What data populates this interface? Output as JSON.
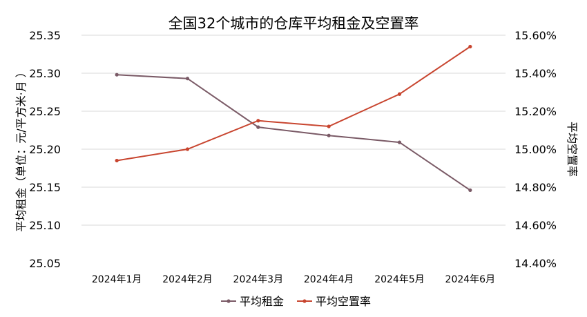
{
  "chart_data": {
    "type": "line",
    "title": "全国32个城市的仓库平均租金及空置率",
    "categories": [
      "2024年1月",
      "2024年2月",
      "2024年3月",
      "2024年4月",
      "2024年5月",
      "2024年6月"
    ],
    "ylabel_left": "平均租金（单位：元/平方米·月 ）",
    "ylabel_right": "平均空置率",
    "ylim_left": [
      25.05,
      25.35
    ],
    "ylim_right": [
      14.4,
      15.6
    ],
    "yticks_left": [
      "25.35",
      "25.30",
      "25.25",
      "25.20",
      "25.15",
      "25.10",
      "25.05"
    ],
    "yticks_right": [
      "15.60%",
      "15.40%",
      "15.20%",
      "15.00%",
      "14.80%",
      "14.60%",
      "14.40%"
    ],
    "grid": true,
    "legend_position": "bottom",
    "series": [
      {
        "name": "平均租金",
        "axis": "left",
        "color": "#7a5a66",
        "values": [
          25.298,
          25.293,
          25.229,
          25.218,
          25.209,
          25.146
        ]
      },
      {
        "name": "平均空置率",
        "axis": "right",
        "color": "#c8452f",
        "unit": "%",
        "values": [
          14.94,
          15.0,
          15.15,
          15.12,
          15.29,
          15.54
        ]
      }
    ]
  }
}
